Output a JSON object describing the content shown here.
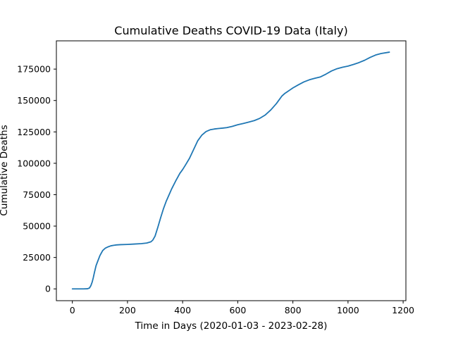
{
  "chart_data": {
    "type": "line",
    "title": "Cumulative Deaths COVID-19 Data (Italy)",
    "xlabel": "Time in Days (2020-01-03 - 2023-02-28)",
    "ylabel": "Cumulative Deaths",
    "xlim": [
      -58,
      1210
    ],
    "ylim": [
      -9400,
      197500
    ],
    "x_ticks": [
      0,
      200,
      400,
      600,
      800,
      1000,
      1200
    ],
    "y_ticks": [
      0,
      25000,
      50000,
      75000,
      100000,
      125000,
      150000,
      175000
    ],
    "grid": false,
    "line_color": "#1f77b4",
    "series": [
      {
        "x": [
          0,
          20,
          40,
          55,
          62,
          67,
          72,
          76,
          80,
          86,
          92,
          100,
          110,
          120,
          130,
          140,
          150,
          160,
          175,
          200,
          225,
          250,
          270,
          285,
          292,
          300,
          310,
          320,
          330,
          340,
          350,
          360,
          375,
          390,
          400,
          410,
          425,
          440,
          455,
          470,
          485,
          500,
          515,
          530,
          545,
          560,
          580,
          600,
          620,
          640,
          660,
          680,
          700,
          720,
          740,
          750,
          760,
          770,
          780,
          790,
          800,
          820,
          840,
          860,
          880,
          900,
          920,
          940,
          960,
          980,
          1000,
          1020,
          1040,
          1060,
          1080,
          1100,
          1120,
          1150
        ],
        "y": [
          0,
          0,
          0,
          100,
          700,
          2500,
          5500,
          9000,
          13000,
          18500,
          22000,
          26500,
          30500,
          32500,
          33500,
          34300,
          34700,
          35000,
          35200,
          35400,
          35700,
          36000,
          36500,
          37500,
          38900,
          42000,
          49000,
          56500,
          63500,
          69500,
          74500,
          79500,
          86000,
          92000,
          95000,
          98500,
          104000,
          111000,
          118000,
          122500,
          125300,
          126700,
          127300,
          127700,
          128000,
          128400,
          129400,
          130700,
          131700,
          132800,
          134000,
          135800,
          138500,
          142500,
          147500,
          150500,
          153500,
          155500,
          157000,
          158500,
          160000,
          162500,
          164800,
          166500,
          167700,
          168800,
          171000,
          173500,
          175300,
          176500,
          177400,
          178700,
          180200,
          182000,
          184300,
          186200,
          187400,
          188500
        ]
      }
    ]
  }
}
